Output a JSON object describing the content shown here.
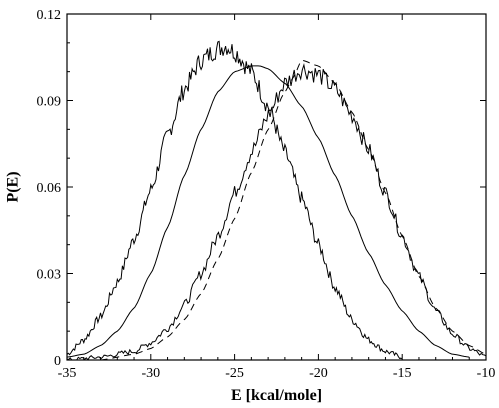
{
  "chart_data": {
    "type": "line",
    "title": "",
    "xlabel": "E [kcal/mole]",
    "ylabel": "P(E)",
    "xlim": [
      -35,
      -10
    ],
    "ylim": [
      0,
      0.12
    ],
    "x_ticks": [
      -35,
      -30,
      -25,
      -20,
      -15,
      -10
    ],
    "y_ticks": [
      0,
      0.03,
      0.06,
      0.09,
      0.12
    ],
    "x_tick_labels": [
      "-35",
      "-30",
      "-25",
      "-20",
      "-15",
      "-10"
    ],
    "y_tick_labels": [
      "0",
      "0.03",
      "0.06",
      "0.09",
      "0.12"
    ],
    "grid": false,
    "legend": "none",
    "series": [
      {
        "style": "solid-noisy",
        "color": "#000000",
        "x": [
          -35,
          -34,
          -33,
          -32,
          -31,
          -30,
          -29,
          -28,
          -27,
          -26,
          -25.5,
          -25,
          -24,
          -23,
          -22,
          -21,
          -20,
          -19,
          -18,
          -17,
          -16,
          -15
        ],
        "y": [
          0.002,
          0.007,
          0.015,
          0.027,
          0.042,
          0.059,
          0.078,
          0.094,
          0.104,
          0.108,
          0.109,
          0.107,
          0.1,
          0.088,
          0.072,
          0.056,
          0.04,
          0.025,
          0.014,
          0.007,
          0.003,
          0.001
        ]
      },
      {
        "style": "solid",
        "color": "#000000",
        "x": [
          -35,
          -34,
          -33,
          -32,
          -31,
          -30,
          -29,
          -28,
          -27,
          -26,
          -25,
          -24,
          -23.5,
          -23,
          -22,
          -21,
          -20,
          -19,
          -18,
          -17,
          -16,
          -15,
          -14,
          -13,
          -12,
          -11
        ],
        "y": [
          0.001,
          0.002,
          0.005,
          0.01,
          0.018,
          0.03,
          0.046,
          0.064,
          0.08,
          0.093,
          0.1,
          0.102,
          0.102,
          0.101,
          0.096,
          0.088,
          0.077,
          0.064,
          0.05,
          0.037,
          0.026,
          0.017,
          0.01,
          0.005,
          0.002,
          0.001
        ]
      },
      {
        "style": "solid-noisy",
        "color": "#000000",
        "x": [
          -35,
          -33,
          -31,
          -30,
          -29,
          -28,
          -27,
          -26,
          -25,
          -24,
          -23,
          -22,
          -21,
          -20,
          -19,
          -18,
          -17,
          -16,
          -15,
          -14,
          -13,
          -12,
          -11,
          -10
        ],
        "y": [
          0.0,
          0.001,
          0.003,
          0.006,
          0.011,
          0.019,
          0.03,
          0.043,
          0.058,
          0.072,
          0.085,
          0.096,
          0.101,
          0.099,
          0.094,
          0.085,
          0.073,
          0.058,
          0.043,
          0.029,
          0.017,
          0.009,
          0.004,
          0.001
        ]
      },
      {
        "style": "dashed",
        "color": "#000000",
        "x": [
          -33,
          -31,
          -30,
          -29,
          -28,
          -27,
          -26,
          -25,
          -24,
          -23,
          -22,
          -21.5,
          -21,
          -20,
          -19,
          -18,
          -17,
          -16,
          -15,
          -14,
          -13,
          -12,
          -11,
          -10
        ],
        "y": [
          0.0,
          0.002,
          0.004,
          0.008,
          0.014,
          0.023,
          0.035,
          0.049,
          0.065,
          0.08,
          0.093,
          0.098,
          0.104,
          0.102,
          0.096,
          0.086,
          0.073,
          0.058,
          0.043,
          0.029,
          0.018,
          0.01,
          0.005,
          0.002
        ]
      }
    ]
  }
}
